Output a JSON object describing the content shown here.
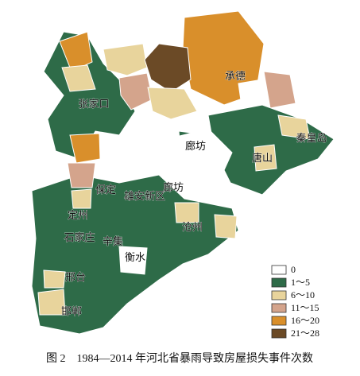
{
  "map": {
    "cities": [
      "张家口",
      "承德",
      "廊坊",
      "秦皇岛",
      "唐山",
      "保定",
      "雄安新区",
      "廊坊",
      "定州",
      "沧州",
      "石家庄",
      "辛集",
      "衡水",
      "邢台",
      "邯郸"
    ],
    "legend": [
      {
        "label": "0",
        "color": "#ffffff"
      },
      {
        "label": "1～5",
        "color": "#2e6b48"
      },
      {
        "label": "6～10",
        "color": "#e8d49c"
      },
      {
        "label": "11～15",
        "color": "#d4a48c"
      },
      {
        "label": "16～20",
        "color": "#d98f2b"
      },
      {
        "label": "21～28",
        "color": "#6b4a26"
      }
    ],
    "caption": "图 2　1984—2014 年河北省暴雨导致房屋损失事件次数"
  }
}
